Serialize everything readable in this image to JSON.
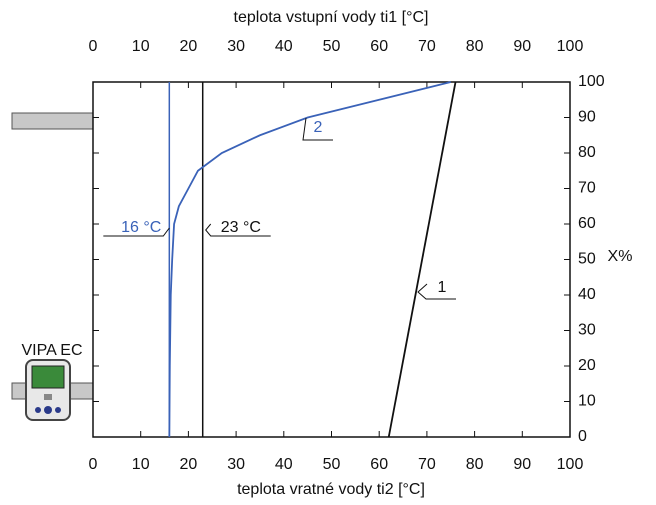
{
  "chart_data": {
    "type": "line",
    "x2_label": "teplota vstupní vody ti1 [°C]",
    "xlabel": "teplota vratné vody ti2 [°C]",
    "ylabel": "X%",
    "xlim": [
      0,
      100
    ],
    "xticks": [
      0,
      10,
      20,
      30,
      40,
      50,
      60,
      70,
      80,
      90,
      100
    ],
    "ylim": [
      0,
      100
    ],
    "yticks": [
      0,
      10,
      20,
      30,
      40,
      50,
      60,
      70,
      80,
      90,
      100
    ],
    "series": [
      {
        "name": "1",
        "color": "#111111",
        "x": [
          62,
          76
        ],
        "values": [
          0,
          100
        ]
      },
      {
        "name": "2",
        "color": "#3a62b8",
        "x": [
          16,
          16.1,
          16.3,
          16.6,
          17,
          18,
          20,
          22,
          27,
          35,
          45,
          60,
          75
        ],
        "values": [
          0,
          20,
          40,
          50,
          60,
          65,
          70,
          75,
          80,
          85,
          90,
          95,
          100
        ]
      }
    ],
    "vlines": [
      {
        "x": 16,
        "label": "16 °C",
        "color": "#3a62b8"
      },
      {
        "x": 23,
        "label": "23 °C",
        "color": "#111111"
      }
    ],
    "device_label": "VIPA EC"
  }
}
